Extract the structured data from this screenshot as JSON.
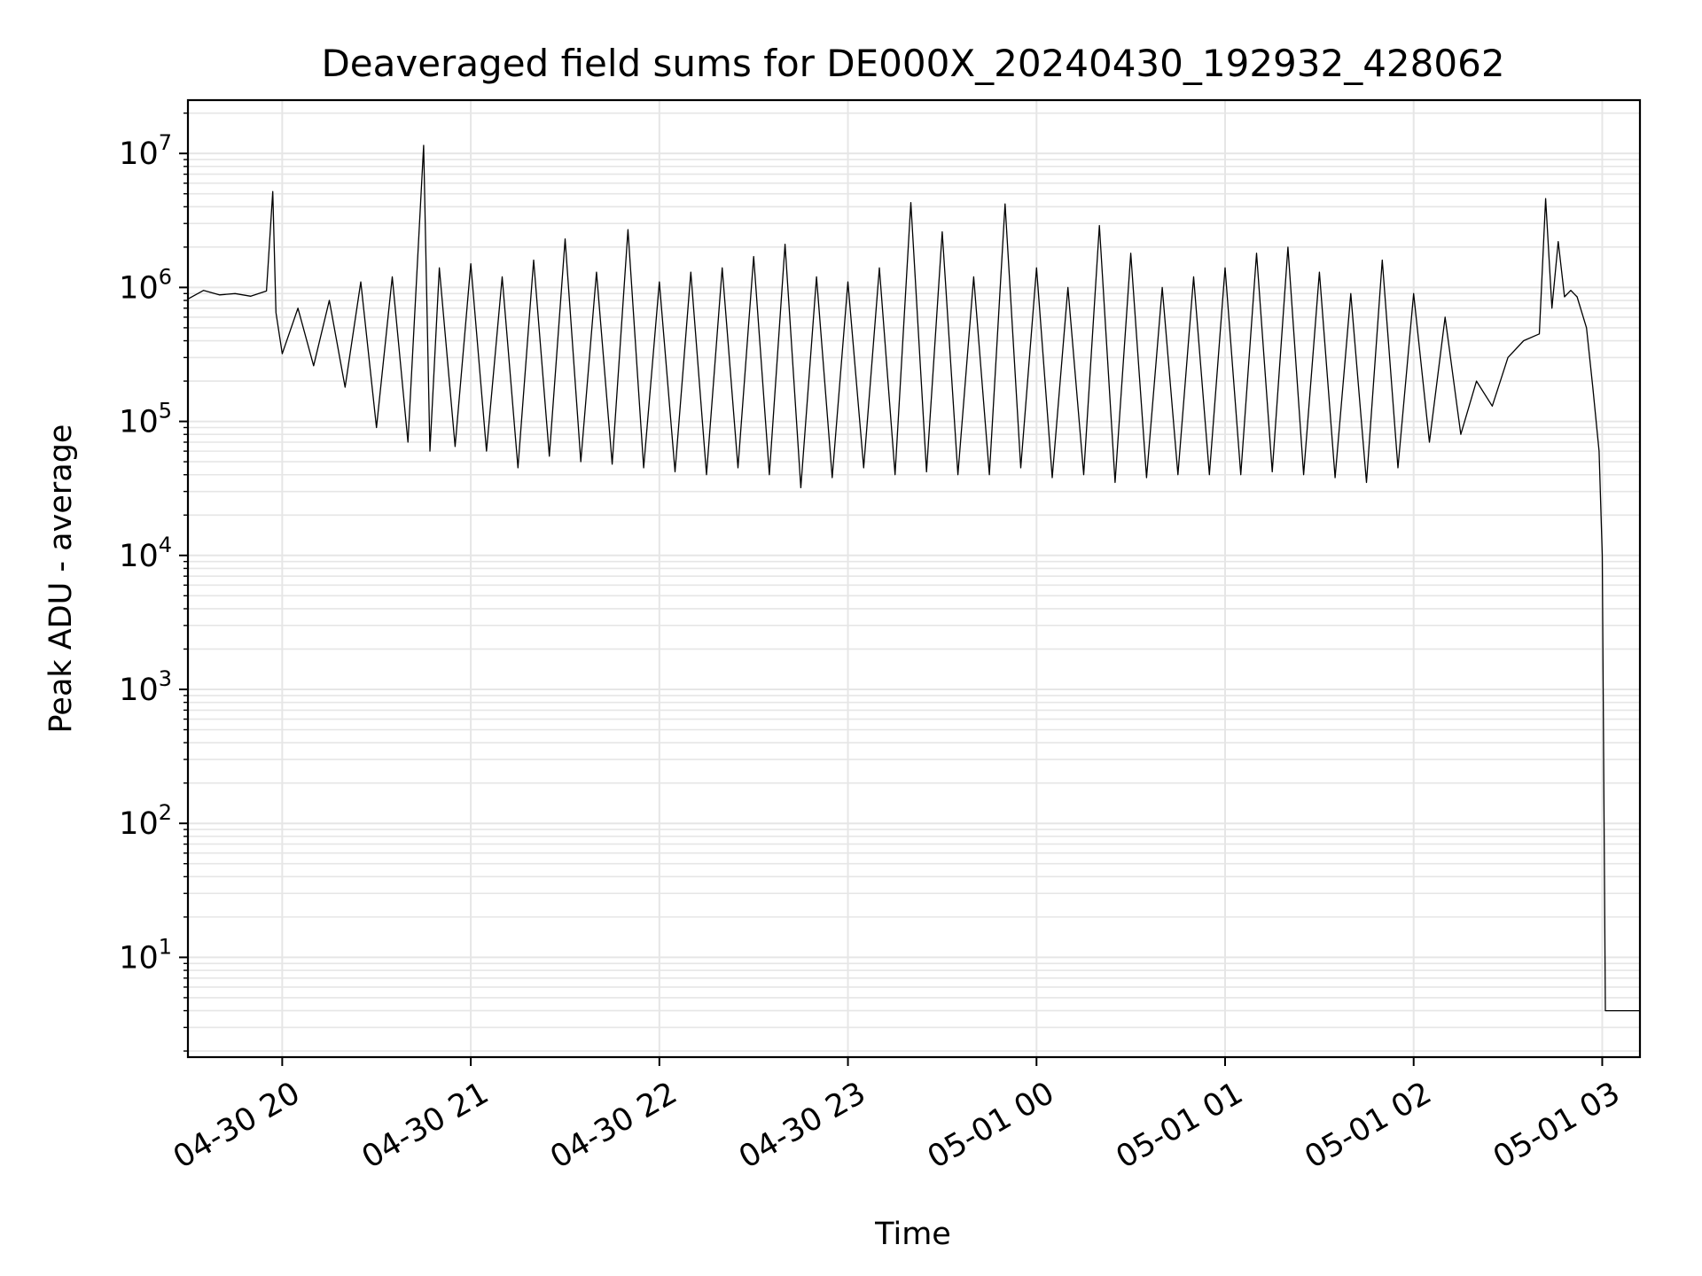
{
  "chart_data": {
    "type": "line",
    "title": "Deaveraged field sums for DE000X_20240430_192932_428062",
    "xlabel": "Time",
    "ylabel": "Peak ADU - average",
    "yscale": "log",
    "grid": true,
    "line_color": "#000000",
    "grid_color": "#e6e6e6",
    "x_start": "2024-04-30 19:30",
    "x_end": "2024-05-01 03:12",
    "ylim": [
      1.8,
      25000000
    ],
    "x_ticks": [
      {
        "value": "2024-04-30 20:00",
        "label": "04-30 20"
      },
      {
        "value": "2024-04-30 21:00",
        "label": "04-30 21"
      },
      {
        "value": "2024-04-30 22:00",
        "label": "04-30 22"
      },
      {
        "value": "2024-04-30 23:00",
        "label": "04-30 23"
      },
      {
        "value": "2024-05-01 00:00",
        "label": "05-01 00"
      },
      {
        "value": "2024-05-01 01:00",
        "label": "05-01 01"
      },
      {
        "value": "2024-05-01 02:00",
        "label": "05-01 02"
      },
      {
        "value": "2024-05-01 03:00",
        "label": "05-01 03"
      }
    ],
    "y_ticks": [
      {
        "value": 10,
        "base": "10",
        "exp": "1"
      },
      {
        "value": 100,
        "base": "10",
        "exp": "2"
      },
      {
        "value": 1000,
        "base": "10",
        "exp": "3"
      },
      {
        "value": 10000,
        "base": "10",
        "exp": "4"
      },
      {
        "value": 100000,
        "base": "10",
        "exp": "5"
      },
      {
        "value": 1000000,
        "base": "10",
        "exp": "6"
      },
      {
        "value": 10000000,
        "base": "10",
        "exp": "7"
      }
    ],
    "series": [
      {
        "points": [
          [
            "2024-04-30 19:30",
            820000
          ],
          [
            "2024-04-30 19:35",
            950000
          ],
          [
            "2024-04-30 19:40",
            880000
          ],
          [
            "2024-04-30 19:45",
            900000
          ],
          [
            "2024-04-30 19:50",
            860000
          ],
          [
            "2024-04-30 19:55",
            940000
          ],
          [
            "2024-04-30 19:57",
            5200000
          ],
          [
            "2024-04-30 19:58",
            650000
          ],
          [
            "2024-04-30 20:00",
            320000
          ],
          [
            "2024-04-30 20:05",
            700000
          ],
          [
            "2024-04-30 20:10",
            260000
          ],
          [
            "2024-04-30 20:15",
            800000
          ],
          [
            "2024-04-30 20:20",
            180000
          ],
          [
            "2024-04-30 20:25",
            1100000
          ],
          [
            "2024-04-30 20:30",
            90000
          ],
          [
            "2024-04-30 20:35",
            1200000
          ],
          [
            "2024-04-30 20:40",
            70000
          ],
          [
            "2024-04-30 20:45",
            11500000
          ],
          [
            "2024-04-30 20:47",
            60000
          ],
          [
            "2024-04-30 20:50",
            1400000
          ],
          [
            "2024-04-30 20:55",
            65000
          ],
          [
            "2024-04-30 21:00",
            1500000
          ],
          [
            "2024-04-30 21:05",
            60000
          ],
          [
            "2024-04-30 21:10",
            1200000
          ],
          [
            "2024-04-30 21:15",
            45000
          ],
          [
            "2024-04-30 21:20",
            1600000
          ],
          [
            "2024-04-30 21:25",
            55000
          ],
          [
            "2024-04-30 21:30",
            2300000
          ],
          [
            "2024-04-30 21:35",
            50000
          ],
          [
            "2024-04-30 21:40",
            1300000
          ],
          [
            "2024-04-30 21:45",
            48000
          ],
          [
            "2024-04-30 21:50",
            2700000
          ],
          [
            "2024-04-30 21:55",
            45000
          ],
          [
            "2024-04-30 22:00",
            1100000
          ],
          [
            "2024-04-30 22:05",
            42000
          ],
          [
            "2024-04-30 22:10",
            1300000
          ],
          [
            "2024-04-30 22:15",
            40000
          ],
          [
            "2024-04-30 22:20",
            1400000
          ],
          [
            "2024-04-30 22:25",
            45000
          ],
          [
            "2024-04-30 22:30",
            1700000
          ],
          [
            "2024-04-30 22:35",
            40000
          ],
          [
            "2024-04-30 22:40",
            2100000
          ],
          [
            "2024-04-30 22:45",
            32000
          ],
          [
            "2024-04-30 22:50",
            1200000
          ],
          [
            "2024-04-30 22:55",
            38000
          ],
          [
            "2024-04-30 23:00",
            1100000
          ],
          [
            "2024-04-30 23:05",
            45000
          ],
          [
            "2024-04-30 23:10",
            1400000
          ],
          [
            "2024-04-30 23:15",
            40000
          ],
          [
            "2024-04-30 23:20",
            4300000
          ],
          [
            "2024-04-30 23:25",
            42000
          ],
          [
            "2024-04-30 23:30",
            2600000
          ],
          [
            "2024-04-30 23:35",
            40000
          ],
          [
            "2024-04-30 23:40",
            1200000
          ],
          [
            "2024-04-30 23:45",
            40000
          ],
          [
            "2024-04-30 23:50",
            4200000
          ],
          [
            "2024-04-30 23:55",
            45000
          ],
          [
            "2024-05-01 00:00",
            1400000
          ],
          [
            "2024-05-01 00:05",
            38000
          ],
          [
            "2024-05-01 00:10",
            1000000
          ],
          [
            "2024-05-01 00:15",
            40000
          ],
          [
            "2024-05-01 00:20",
            2900000
          ],
          [
            "2024-05-01 00:25",
            35000
          ],
          [
            "2024-05-01 00:30",
            1800000
          ],
          [
            "2024-05-01 00:35",
            38000
          ],
          [
            "2024-05-01 00:40",
            1000000
          ],
          [
            "2024-05-01 00:45",
            40000
          ],
          [
            "2024-05-01 00:50",
            1200000
          ],
          [
            "2024-05-01 00:55",
            40000
          ],
          [
            "2024-05-01 01:00",
            1400000
          ],
          [
            "2024-05-01 01:05",
            40000
          ],
          [
            "2024-05-01 01:10",
            1800000
          ],
          [
            "2024-05-01 01:15",
            42000
          ],
          [
            "2024-05-01 01:20",
            2000000
          ],
          [
            "2024-05-01 01:25",
            40000
          ],
          [
            "2024-05-01 01:30",
            1300000
          ],
          [
            "2024-05-01 01:35",
            38000
          ],
          [
            "2024-05-01 01:40",
            900000
          ],
          [
            "2024-05-01 01:45",
            35000
          ],
          [
            "2024-05-01 01:50",
            1600000
          ],
          [
            "2024-05-01 01:55",
            45000
          ],
          [
            "2024-05-01 02:00",
            900000
          ],
          [
            "2024-05-01 02:05",
            70000
          ],
          [
            "2024-05-01 02:10",
            600000
          ],
          [
            "2024-05-01 02:15",
            80000
          ],
          [
            "2024-05-01 02:20",
            200000
          ],
          [
            "2024-05-01 02:25",
            130000
          ],
          [
            "2024-05-01 02:30",
            300000
          ],
          [
            "2024-05-01 02:35",
            400000
          ],
          [
            "2024-05-01 02:40",
            450000
          ],
          [
            "2024-05-01 02:42",
            4600000
          ],
          [
            "2024-05-01 02:44",
            700000
          ],
          [
            "2024-05-01 02:46",
            2200000
          ],
          [
            "2024-05-01 02:48",
            850000
          ],
          [
            "2024-05-01 02:50",
            950000
          ],
          [
            "2024-05-01 02:52",
            850000
          ],
          [
            "2024-05-01 02:55",
            500000
          ],
          [
            "2024-05-01 02:57",
            180000
          ],
          [
            "2024-05-01 02:59",
            60000
          ],
          [
            "2024-05-01 03:00",
            10000
          ],
          [
            "2024-05-01 03:01",
            4
          ],
          [
            "2024-05-01 03:12",
            4
          ]
        ]
      }
    ]
  }
}
